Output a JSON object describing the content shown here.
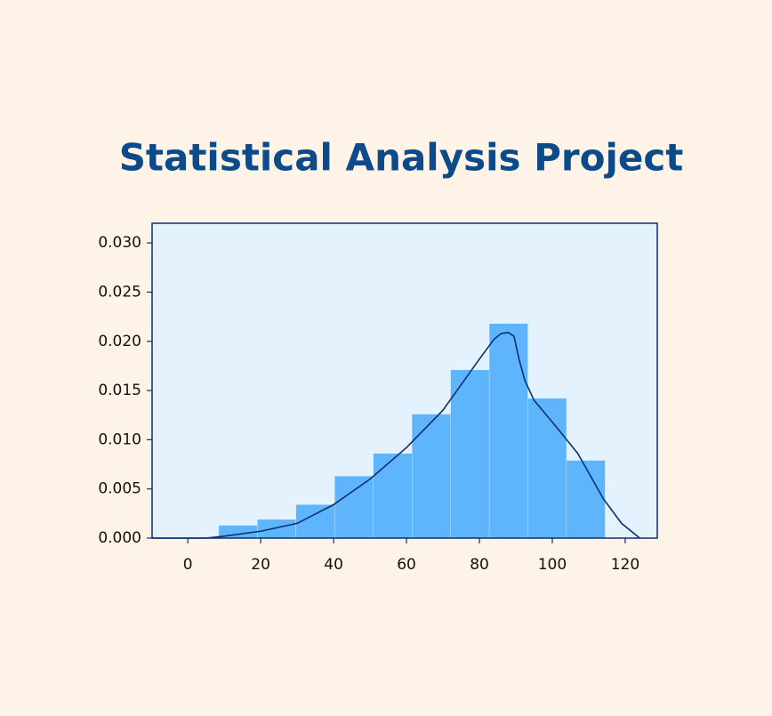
{
  "chart_data": {
    "type": "histogram",
    "title": "Statistical Analysis Project",
    "bins": [
      8.5,
      19.1,
      29.7,
      40.3,
      50.9,
      61.5,
      72.1,
      82.7,
      93.3,
      103.9,
      114.5
    ],
    "values": [
      0.0013,
      0.0019,
      0.0034,
      0.0063,
      0.0086,
      0.0126,
      0.0171,
      0.0218,
      0.0142,
      0.0079
    ],
    "color": "#5eb5fc",
    "kde": {
      "color": "#0d2f6e",
      "x": [
        -9.8,
        0,
        5,
        10,
        20,
        30,
        40,
        50,
        60,
        70,
        80,
        84,
        86,
        88,
        89.5,
        91,
        92.5,
        95,
        100,
        107,
        114,
        119,
        124
      ],
      "y": [
        0,
        0,
        0,
        0.0002,
        0.0007,
        0.0015,
        0.0034,
        0.006,
        0.0092,
        0.013,
        0.0182,
        0.0202,
        0.0208,
        0.0209,
        0.0205,
        0.018,
        0.016,
        0.014,
        0.0118,
        0.0086,
        0.004,
        0.0015,
        0
      ]
    },
    "xlim": [
      -9.8,
      128.8
    ],
    "ylim": [
      0,
      0.032
    ],
    "xticks": [
      0,
      20,
      40,
      60,
      80,
      100,
      120
    ],
    "yticks": [
      {
        "value": 0,
        "label": "0.000"
      },
      {
        "value": 0.005,
        "label": "0.005"
      },
      {
        "value": 0.01,
        "label": "0.010"
      },
      {
        "value": 0.015,
        "label": "0.015"
      },
      {
        "value": 0.02,
        "label": "0.020"
      },
      {
        "value": 0.025,
        "label": "0.025"
      },
      {
        "value": 0.03,
        "label": "0.030"
      }
    ]
  }
}
